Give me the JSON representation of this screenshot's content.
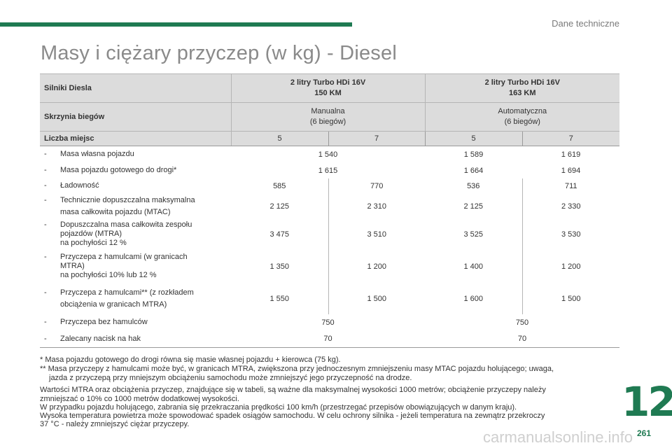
{
  "header": {
    "section": "Dane techniczne",
    "title": "Masy i ciężary przyczep (w kg) - Diesel"
  },
  "table": {
    "engines_label": "Silniki Diesla",
    "engine1_line1": "2 litry Turbo HDi 16V",
    "engine1_line2": "150 KM",
    "engine2_line1": "2 litry Turbo HDi 16V",
    "engine2_line2": "163 KM",
    "gearbox_label": "Skrzynia biegów",
    "gearbox1_line1": "Manualna",
    "gearbox1_line2": "(6 biegów)",
    "gearbox2_line1": "Automatyczna",
    "gearbox2_line2": "(6 biegów)",
    "seats_label": "Liczba miejsc",
    "seats": [
      "5",
      "7",
      "5",
      "7"
    ],
    "dash": "-",
    "rows": [
      {
        "label": [
          "Masa własna pojazdu"
        ],
        "values": [
          "1 540",
          "1 589",
          "1 619"
        ]
      },
      {
        "label": [
          "Masa pojazdu gotowego do drogi*"
        ],
        "values": [
          "1 615",
          "1 664",
          "1 694"
        ]
      },
      {
        "label": [
          "Ładowność"
        ],
        "values": [
          "585",
          "770",
          "536",
          "711"
        ]
      },
      {
        "label": [
          "Technicznie dopuszczalna maksymalna",
          "masa całkowita pojazdu (MTAC)"
        ],
        "values": [
          "2 125",
          "2 310",
          "2 125",
          "2 330"
        ]
      },
      {
        "label": [
          "Dopuszczalna masa całkowita zespołu",
          "pojazdów (MTRA)",
          "na pochyłości 12 %"
        ],
        "values": [
          "3 475",
          "3 510",
          "3 525",
          "3 530"
        ]
      },
      {
        "label": [
          "Przyczepa z hamulcami (w granicach",
          "MTRA)",
          "na pochyłości 10% lub 12 %"
        ],
        "values": [
          "1 350",
          "1 200",
          "1 400",
          "1 200"
        ]
      },
      {
        "label": [
          "Przyczepa z hamulcami** (z rozkładem",
          "obciążenia w granicach MTRA)"
        ],
        "values": [
          "1 550",
          "1 500",
          "1 600",
          "1 500"
        ]
      },
      {
        "label": [
          "Przyczepa bez hamulców"
        ],
        "values": [
          "750",
          "750"
        ]
      },
      {
        "label": [
          "Zalecany nacisk na hak"
        ],
        "values": [
          "70",
          "70"
        ]
      }
    ]
  },
  "notes": {
    "fn1": "* Masa pojazdu gotowego do drogi równa się masie własnej pojazdu + kierowca (75 kg).",
    "fn2_l1": "** Masa przyczepy z hamulcami może być, w granicach MTRA, zwiększona przy jednoczesnym zmniejszeniu masy MTAC pojazdu holującego; uwaga,",
    "fn2_l2": "jazda z przyczepą przy mniejszym obciążeniu samochodu może zmniejszyć jego przyczepność na drodze.",
    "p1_l1": "Wartości MTRA oraz obciążenia przyczep, znajdujące się w tabeli, są ważne dla maksymalnej wysokości 1000 metrów; obciążenie przyczepy należy",
    "p1_l2": "zmniejszać o 10% co 1000 metrów dodatkowej wysokości.",
    "p2": "W przypadku pojazdu holującego, zabrania się przekraczania prędkości 100 km/h (przestrzegać przepisów obowiązujących w danym kraju).",
    "p3_l1": "Wysoka temperatura powietrza może spowodować spadek osiągów samochodu. W celu ochrony silnika - jeżeli temperatura na zewnątrz przekroczy",
    "p3_l2": "37 °C - należy zmniejszyć ciężar przyczepy."
  },
  "chapter_number": "12",
  "page_number": "261",
  "watermark": "carmanualsonline.info",
  "colors": {
    "accent": "#1f7a52",
    "header_bg": "#dcdcdc",
    "title": "#8a8a8a"
  }
}
